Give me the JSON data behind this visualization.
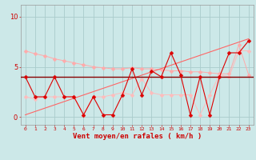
{
  "xlabel": "Vent moyen/en rafales ( km/h )",
  "background_color": "#cce8e8",
  "grid_color": "#aacccc",
  "x_ticks": [
    0,
    1,
    2,
    3,
    4,
    5,
    6,
    7,
    8,
    9,
    10,
    11,
    12,
    13,
    14,
    15,
    16,
    17,
    18,
    19,
    20,
    21,
    22,
    23
  ],
  "ylim": [
    -0.8,
    11.2
  ],
  "xlim": [
    -0.5,
    23.5
  ],
  "yticks": [
    0,
    5,
    10
  ],
  "line1_x": [
    0,
    1,
    2,
    3,
    4,
    5,
    6,
    7,
    8,
    9,
    10,
    11,
    12,
    13,
    14,
    15,
    16,
    17,
    18,
    19,
    20,
    21,
    22,
    23
  ],
  "line1_y": [
    4.0,
    2.0,
    2.0,
    4.0,
    2.0,
    2.0,
    0.2,
    2.0,
    0.2,
    0.2,
    2.2,
    4.8,
    2.2,
    4.6,
    4.0,
    6.4,
    4.2,
    0.2,
    4.0,
    0.2,
    4.0,
    6.4,
    6.4,
    7.6
  ],
  "line1_color": "#dd0000",
  "line1_lw": 0.8,
  "line2_y": 4.0,
  "line2_color": "#880000",
  "line2_lw": 1.0,
  "line3_x": [
    0,
    1,
    2,
    3,
    4,
    5,
    6,
    7,
    8,
    9,
    10,
    11,
    12,
    13,
    14,
    15,
    16,
    17,
    18,
    19,
    20,
    21,
    22,
    23
  ],
  "line3_y": [
    6.6,
    6.3,
    6.1,
    5.8,
    5.6,
    5.4,
    5.2,
    5.0,
    4.9,
    4.8,
    4.8,
    4.9,
    4.8,
    4.8,
    4.7,
    4.6,
    4.6,
    4.5,
    4.5,
    4.4,
    4.3,
    4.3,
    7.2,
    4.2
  ],
  "line3_color": "#ffaaaa",
  "line3_lw": 0.7,
  "line4_x": [
    0,
    1,
    2,
    3,
    4,
    5,
    6,
    7,
    8,
    9,
    10,
    11,
    12,
    13,
    14,
    15,
    16,
    17,
    18,
    19,
    20,
    21,
    22,
    23
  ],
  "line4_y": [
    2.0,
    1.8,
    2.0,
    2.0,
    2.0,
    2.0,
    0.2,
    2.0,
    2.0,
    2.2,
    2.4,
    2.2,
    3.8,
    2.4,
    2.2,
    2.2,
    2.2,
    2.2,
    0.2,
    2.2,
    4.2,
    4.0,
    6.6,
    6.6
  ],
  "line4_color": "#ffbbbb",
  "line4_lw": 0.7,
  "trend_x": [
    0,
    23
  ],
  "trend_y": [
    0.2,
    7.8
  ],
  "trend_color": "#ff6666",
  "trend_lw": 0.8,
  "marker_size": 2.5,
  "marker": "D"
}
